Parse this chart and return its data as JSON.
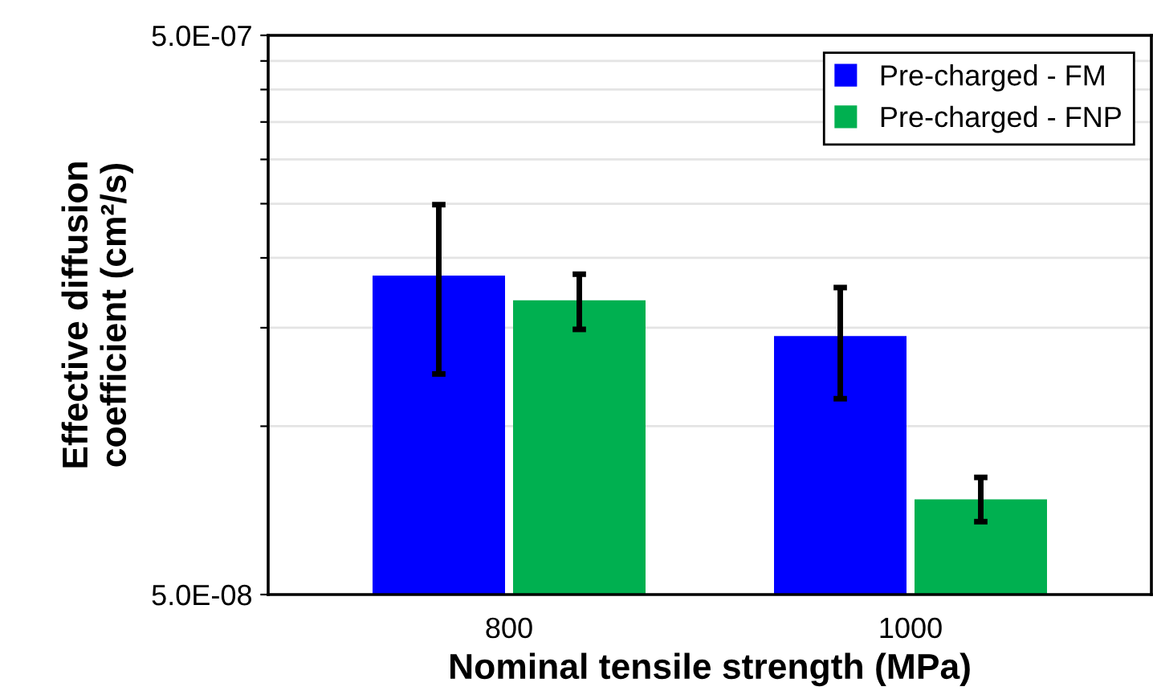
{
  "chart_data": {
    "type": "bar",
    "xlabel": "Nominal tensile strength (MPa)",
    "ylabel": "Effective diffusion\ncoefficient (cm²/s)",
    "categories": [
      "800",
      "1000"
    ],
    "series": [
      {
        "name": "Pre-charged - FM",
        "color": "#0000ff",
        "values": [
          1.86e-07,
          1.45e-07
        ],
        "errors": [
          [
            1.24e-07,
            2.49e-07
          ],
          [
            1.12e-07,
            1.77e-07
          ]
        ]
      },
      {
        "name": "Pre-charged - FNP",
        "color": "#00b050",
        "values": [
          1.68e-07,
          7.4e-08
        ],
        "errors": [
          [
            1.49e-07,
            1.87e-07
          ],
          [
            6.75e-08,
            8.1e-08
          ]
        ]
      }
    ],
    "log": "y",
    "ylim": [
      5e-08,
      5e-07
    ],
    "yticks": [
      {
        "value": 5e-08,
        "label": "5.0E-08"
      },
      {
        "value": 1e-07,
        "label": null
      },
      {
        "value": 1.5e-07,
        "label": null
      },
      {
        "value": 2e-07,
        "label": null
      },
      {
        "value": 2.5e-07,
        "label": null
      },
      {
        "value": 3e-07,
        "label": null
      },
      {
        "value": 3.5e-07,
        "label": null
      },
      {
        "value": 4e-07,
        "label": null
      },
      {
        "value": 4.5e-07,
        "label": null
      },
      {
        "value": 5e-07,
        "label": "5.0E-07"
      }
    ],
    "grid": "y",
    "legend": "top right"
  }
}
